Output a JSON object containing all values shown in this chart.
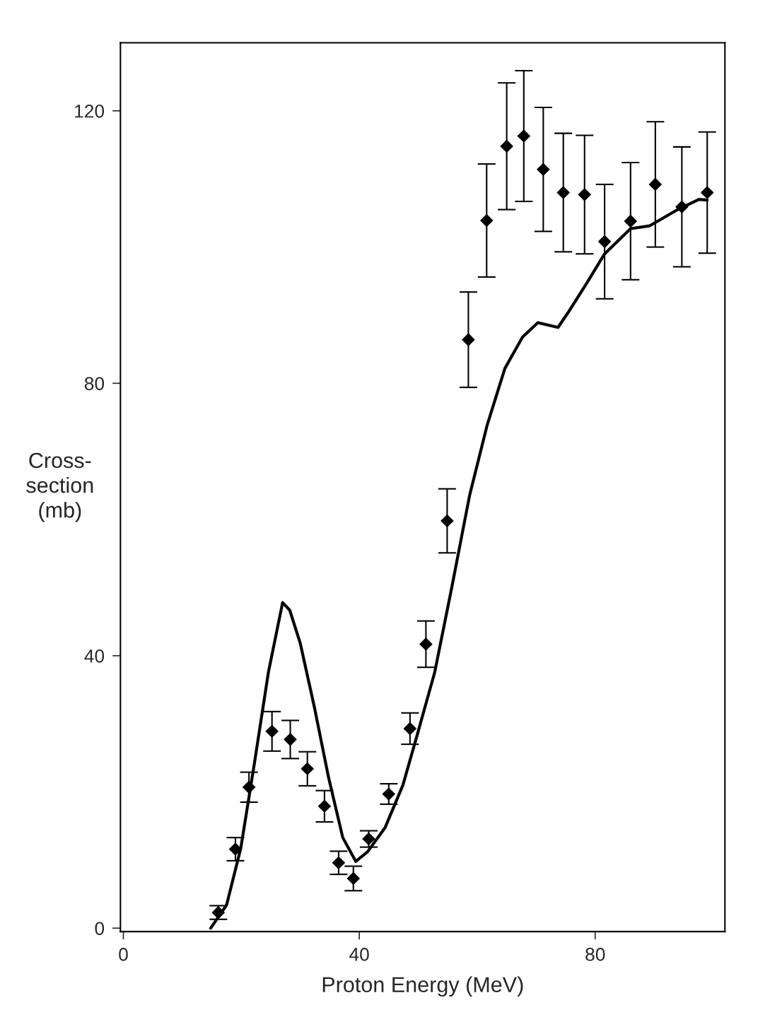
{
  "chart_data": {
    "type": "scatter",
    "xlabel": "Proton Energy (MeV)",
    "ylabel": "Cross-\nsection\n(mb)",
    "xlim": [
      -0.5,
      102
    ],
    "ylim": [
      -0.5,
      130
    ],
    "xticks": [
      0,
      40,
      80
    ],
    "yticks": [
      0,
      40,
      80,
      120
    ],
    "grid": false,
    "legend": false,
    "series": [
      {
        "color": "#000000",
        "marker": "diamond",
        "x": [
          16.1,
          19.0,
          21.3,
          25.2,
          28.3,
          31.2,
          34.1,
          36.5,
          39.0,
          41.6,
          45.0,
          48.6,
          51.3,
          54.9,
          58.5,
          61.6,
          65.0,
          67.9,
          71.2,
          74.6,
          78.2,
          81.6,
          86.0,
          90.2,
          94.7,
          99.0
        ],
        "values": [
          2.3,
          11.6,
          20.7,
          28.9,
          27.7,
          23.4,
          17.9,
          9.6,
          7.3,
          13.1,
          19.7,
          29.3,
          41.7,
          59.8,
          86.4,
          103.9,
          114.8,
          116.3,
          111.4,
          108.0,
          107.7,
          100.8,
          103.8,
          109.2,
          105.9,
          108.0
        ],
        "errors": [
          1.0,
          1.7,
          2.2,
          2.9,
          2.8,
          2.5,
          2.3,
          1.7,
          1.8,
          1.2,
          1.5,
          2.3,
          3.4,
          4.7,
          7.0,
          8.3,
          9.3,
          9.6,
          9.1,
          8.7,
          8.7,
          8.4,
          8.6,
          9.2,
          8.8,
          8.9
        ]
      },
      {
        "type": "line",
        "color": "#000000",
        "marker": "none",
        "line_style": "solid",
        "x": [
          14.8,
          17.5,
          19.9,
          22.2,
          24.6,
          27.0,
          28.2,
          30.0,
          32.4,
          34.8,
          37.2,
          39.4,
          41.4,
          44.4,
          47.4,
          49.8,
          52.8,
          55.7,
          58.7,
          61.7,
          64.7,
          67.7,
          70.3,
          73.7,
          75.5,
          78.5,
          81.6,
          86.0,
          89.2,
          94.0,
          97.6,
          99.0
        ],
        "values": [
          0,
          3.4,
          11.7,
          24.1,
          37.6,
          47.8,
          46.7,
          41.8,
          32.4,
          22.1,
          13.3,
          9.8,
          11.2,
          14.8,
          21.0,
          28.3,
          37.6,
          50.1,
          63.5,
          73.9,
          82.2,
          86.8,
          88.9,
          88.2,
          90.5,
          94.6,
          99.0,
          102.7,
          103.1,
          105.5,
          107.0,
          106.9
        ]
      }
    ]
  }
}
